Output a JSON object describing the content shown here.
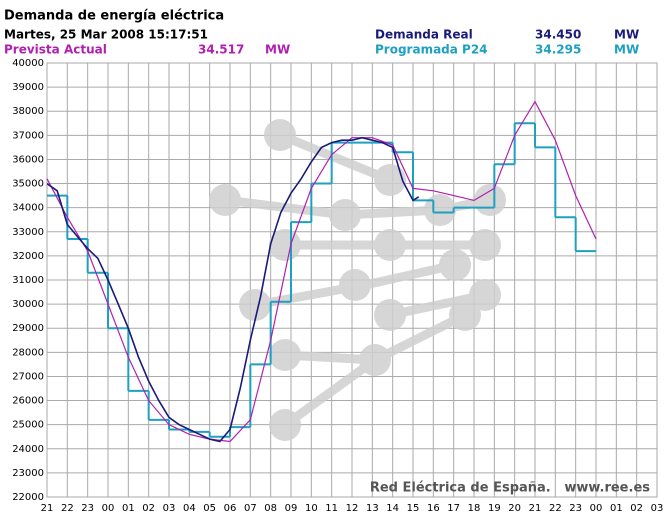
{
  "chart_data": {
    "type": "line",
    "title": "Demanda de energía eléctrica",
    "subtitle": "Martes, 25 Mar 2008 15:17:51",
    "watermark": "Red Eléctrica de España.   www.ree.es",
    "ylim": [
      22000,
      40000
    ],
    "yticks": [
      22000,
      23000,
      24000,
      25000,
      26000,
      27000,
      28000,
      29000,
      30000,
      31000,
      32000,
      33000,
      34000,
      35000,
      36000,
      37000,
      38000,
      39000,
      40000
    ],
    "xlim": [
      0,
      30
    ],
    "xticks": [
      {
        "value": 0,
        "label": "21"
      },
      {
        "value": 1,
        "label": "22"
      },
      {
        "value": 2,
        "label": "23"
      },
      {
        "value": 3,
        "label": "00"
      },
      {
        "value": 4,
        "label": "01"
      },
      {
        "value": 5,
        "label": "02"
      },
      {
        "value": 6,
        "label": "03"
      },
      {
        "value": 7,
        "label": "04"
      },
      {
        "value": 8,
        "label": "05"
      },
      {
        "value": 9,
        "label": "06"
      },
      {
        "value": 10,
        "label": "07"
      },
      {
        "value": 11,
        "label": "08"
      },
      {
        "value": 12,
        "label": "09"
      },
      {
        "value": 13,
        "label": "10"
      },
      {
        "value": 14,
        "label": "11"
      },
      {
        "value": 15,
        "label": "12"
      },
      {
        "value": 16,
        "label": "13"
      },
      {
        "value": 17,
        "label": "14"
      },
      {
        "value": 18,
        "label": "15"
      },
      {
        "value": 19,
        "label": "16"
      },
      {
        "value": 20,
        "label": "17"
      },
      {
        "value": 21,
        "label": "18"
      },
      {
        "value": 22,
        "label": "19"
      },
      {
        "value": 23,
        "label": "20"
      },
      {
        "value": 24,
        "label": "21"
      },
      {
        "value": 25,
        "label": "22"
      },
      {
        "value": 26,
        "label": "23"
      },
      {
        "value": 27,
        "label": "00"
      },
      {
        "value": 28,
        "label": "01"
      },
      {
        "value": 29,
        "label": "02"
      },
      {
        "value": 30,
        "label": "03"
      }
    ],
    "grid": true,
    "series": [
      {
        "name": "Prevista Actual",
        "color": "#b020b0",
        "unit": "MW",
        "current": {
          "value": 34517,
          "label": "34.517"
        },
        "x": [
          0,
          1,
          2,
          3,
          4,
          5,
          6,
          7,
          8,
          9,
          10,
          11,
          12,
          13,
          14,
          15,
          16,
          17,
          18,
          19,
          20,
          21,
          22,
          23,
          24,
          25,
          26,
          27
        ],
        "values": [
          35200,
          33600,
          32200,
          30000,
          27800,
          26000,
          25000,
          24600,
          24400,
          24300,
          25200,
          28500,
          32500,
          34800,
          36200,
          36900,
          36900,
          36600,
          34800,
          34700,
          34500,
          34300,
          34800,
          37000,
          38400,
          36800,
          34500,
          32700
        ]
      },
      {
        "name": "Demanda Real",
        "color": "#1a1a7a",
        "unit": "MW",
        "current": {
          "value": 34450,
          "label": "34.450"
        },
        "x": [
          0,
          0.5,
          1,
          1.5,
          2,
          2.5,
          3,
          3.5,
          4,
          4.5,
          5,
          5.5,
          6,
          6.5,
          7,
          7.5,
          8,
          8.5,
          9,
          9.5,
          10,
          10.5,
          11,
          11.5,
          12,
          12.5,
          13,
          13.5,
          14,
          14.5,
          15,
          15.5,
          16,
          16.5,
          17,
          17.5,
          18,
          18.28
        ],
        "values": [
          35000,
          34700,
          33300,
          32800,
          32300,
          31900,
          31000,
          30000,
          29000,
          27800,
          26800,
          26000,
          25300,
          25000,
          24800,
          24600,
          24400,
          24300,
          24800,
          26500,
          28500,
          30300,
          32500,
          33800,
          34600,
          35200,
          35900,
          36500,
          36700,
          36800,
          36800,
          36900,
          36800,
          36700,
          36500,
          35100,
          34300,
          34450
        ]
      },
      {
        "name": "Programada P24",
        "color": "#1ea0c0",
        "unit": "MW",
        "current": {
          "value": 34295,
          "label": "34.295"
        },
        "step": true,
        "x": [
          0,
          1,
          2,
          3,
          4,
          5,
          6,
          7,
          8,
          9,
          10,
          11,
          12,
          13,
          14,
          15,
          16,
          17,
          18,
          19,
          20,
          21,
          22,
          23,
          24,
          25,
          26
        ],
        "values": [
          34500,
          32700,
          31300,
          29000,
          26400,
          25200,
          24800,
          24700,
          24500,
          24900,
          27500,
          30100,
          33400,
          35000,
          36700,
          36700,
          36700,
          36300,
          34300,
          33800,
          34000,
          34000,
          35800,
          37500,
          36500,
          33600,
          32200
        ]
      }
    ]
  }
}
